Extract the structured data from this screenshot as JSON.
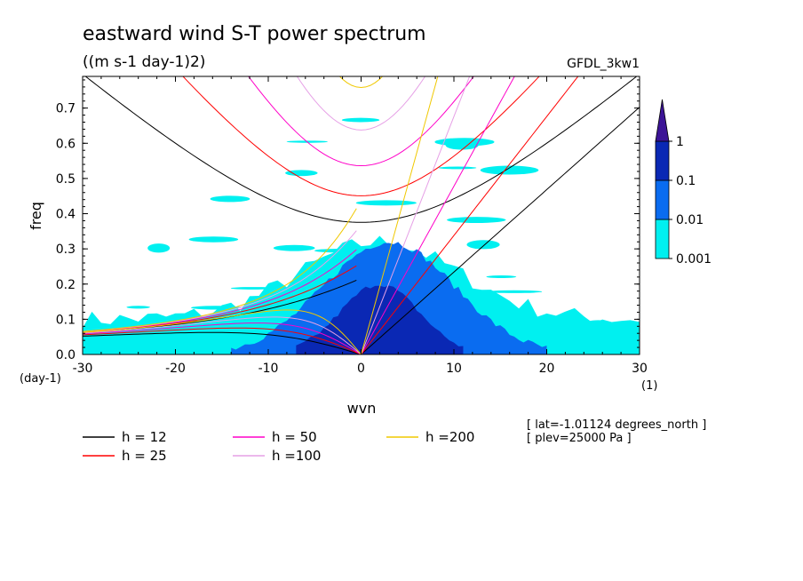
{
  "chart_data": {
    "type": "heatmap",
    "title": "eastward wind S-T power spectrum",
    "subtitle": "((m s-1 day-1)2)",
    "model": "GFDL_3kw1",
    "xlabel": "wvn",
    "ylabel": "freq",
    "x_unit": "(1)",
    "y_unit": "(day-1)",
    "xlim": [
      -30,
      30
    ],
    "ylim": [
      0,
      0.79
    ],
    "x_ticks": [
      -30,
      -20,
      -10,
      0,
      10,
      20,
      30
    ],
    "x_tick_labels": [
      "-30",
      "-20",
      "-10",
      "0",
      "10",
      "20",
      "30"
    ],
    "y_ticks": [
      0,
      0.1,
      0.2,
      0.3,
      0.4,
      0.5,
      0.6,
      0.7
    ],
    "y_tick_labels": [
      "0.0",
      "0.1",
      "0.2",
      "0.3",
      "0.4",
      "0.5",
      "0.6",
      "0.7"
    ],
    "colorbar": {
      "levels": [
        "0.001",
        "0.01",
        "0.1",
        "1"
      ],
      "colors": [
        "#00f0f0",
        "#0a6cf0",
        "#0a28b4",
        "#3c1496"
      ]
    },
    "contour_regions": [
      {
        "level": 0.001,
        "color": "#00f0f0",
        "kmin": -30,
        "kmax": 30,
        "fmax": 0.35,
        "note": "broad background band"
      },
      {
        "level": 0.01,
        "color": "#0a6cf0",
        "center_k": 3,
        "width_k": 10,
        "fmax": 0.32
      },
      {
        "level": 0.1,
        "color": "#0a28b4",
        "center_k": 2,
        "width_k": 6,
        "fmax": 0.2
      }
    ],
    "dispersion_curves": [
      {
        "name": "h = 12",
        "color": "#000000",
        "h": 12
      },
      {
        "name": "h = 25",
        "color": "#ff0000",
        "h": 25
      },
      {
        "name": "h = 50",
        "color": "#ff00c8",
        "h": 50
      },
      {
        "name": "h =100",
        "color": "#e6a0e6",
        "h": 100
      },
      {
        "name": "h =200",
        "color": "#f0c800",
        "h": 200
      }
    ]
  },
  "annotations": {
    "lat": "[ lat=-1.01124 degrees_north ]",
    "plev": "[ plev=25000 Pa ]"
  }
}
